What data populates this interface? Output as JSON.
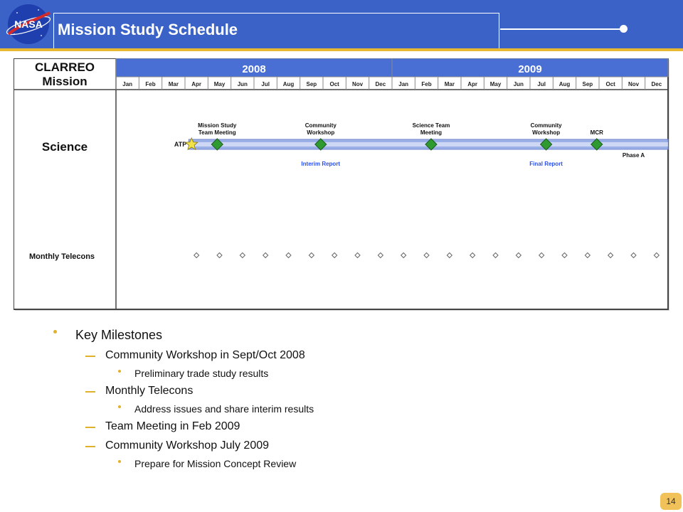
{
  "header": {
    "title": "Mission Study Schedule",
    "logo_text": "NASA",
    "colors": {
      "bar": "#3a62c7",
      "accent": "#e8b833"
    }
  },
  "gantt": {
    "row_header": "CLARREO Mission",
    "years": [
      "2008",
      "2009"
    ],
    "months": [
      "Jan",
      "Feb",
      "Mar",
      "Apr",
      "May",
      "Jun",
      "Jul",
      "Aug",
      "Sep",
      "Oct",
      "Nov",
      "Dec",
      "Jan",
      "Feb",
      "Mar",
      "Apr",
      "May",
      "Jun",
      "Jul",
      "Aug",
      "Sep",
      "Oct",
      "Nov",
      "Dec"
    ],
    "rows": [
      {
        "label": "Science"
      },
      {
        "label": "Monthly Telecons"
      }
    ],
    "atp_label": "ATP",
    "milestones": [
      {
        "label": "Mission Study Team Meeting",
        "month": 4.4
      },
      {
        "label": "Community Workshop",
        "month": 8.9
      },
      {
        "label": "Science Team Meeting",
        "month": 13.7
      },
      {
        "label": "Community Workshop",
        "month": 18.7
      },
      {
        "label": "MCR",
        "month": 20.9
      }
    ],
    "notes": [
      {
        "label": "Interim Report",
        "month": 8.9,
        "color": "#2a4ff0"
      },
      {
        "label": "Final Report",
        "month": 18.7,
        "color": "#2a4ff0"
      },
      {
        "label": "Phase A",
        "month": 22.5,
        "color": "#111111"
      }
    ],
    "telecon_months": [
      3.5,
      4.5,
      5.5,
      6.5,
      7.5,
      8.5,
      9.5,
      10.5,
      11.5,
      12.5,
      13.5,
      14.5,
      15.5,
      16.5,
      17.5,
      18.5,
      19.5,
      20.5,
      21.5,
      22.5,
      23.5
    ],
    "colors": {
      "milestone": "#2f9a2f",
      "bar": "#9cb0e8",
      "star": "#f2e24a"
    }
  },
  "milestones_list": {
    "heading": "Key Milestones",
    "items": [
      {
        "text": "Community Workshop in Sept/Oct 2008",
        "sub": [
          "Preliminary trade study results"
        ]
      },
      {
        "text": "Monthly Telecons",
        "sub": [
          "Address issues and share interim results"
        ]
      },
      {
        "text": "Team Meeting in Feb 2009",
        "sub": []
      },
      {
        "text": "Community Workshop July 2009",
        "sub": [
          "Prepare for Mission Concept Review"
        ]
      }
    ]
  },
  "page_number": "14"
}
